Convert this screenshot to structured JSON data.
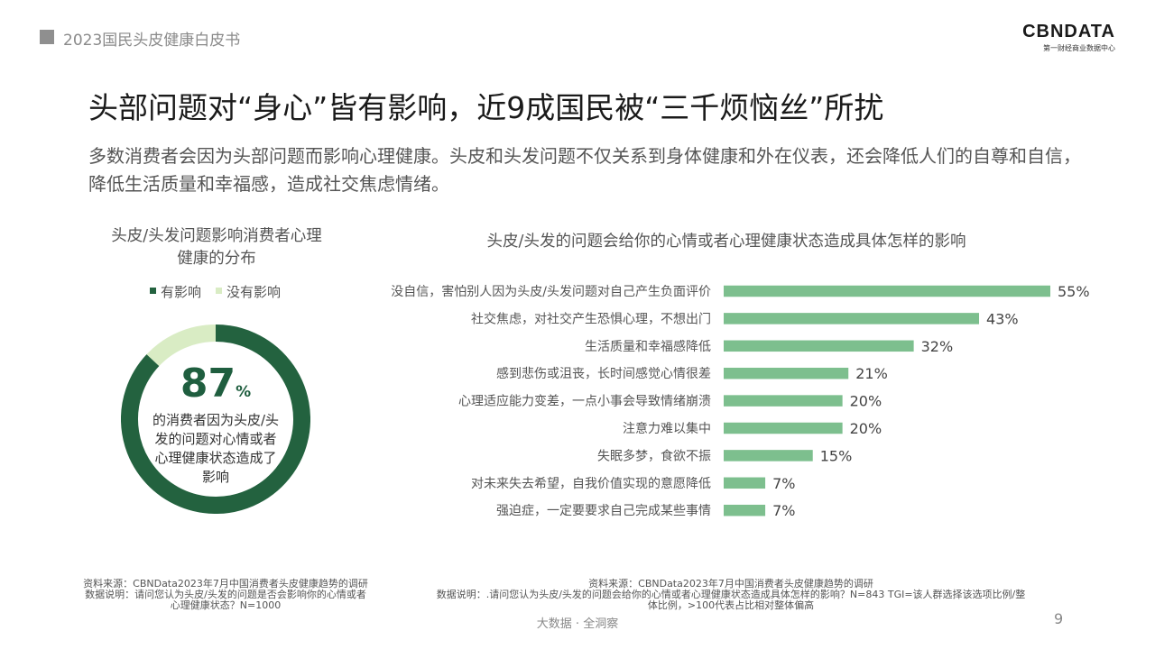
{
  "header": {
    "title": "2023国民头皮健康白皮书"
  },
  "logo": {
    "main": "CBNDATA",
    "sub": "第一财经商业数据中心"
  },
  "main": {
    "title": "头部问题对“身心”皆有影响，近9成国民被“三千烦恼丝”所扰",
    "subtitle": "多数消费者会因为头部问题而影响心理健康。头皮和头发问题不仅关系到身体健康和外在仪表，还会降低人们的自尊和自信，降低生活质量和幸福感，造成社交焦虑情绪。"
  },
  "colors": {
    "dark_green": "#23623f",
    "light_green": "#d9ecc4",
    "bar_green": "#7dbf8e"
  },
  "donut": {
    "big_number": "87",
    "big_unit": "%",
    "center_text": "的消费者因为头皮/头发的问题对心情或者心理健康状态造成了影响"
  },
  "chart_data": [
    {
      "type": "pie",
      "title": "头皮/头发问题影响消费者心理健康的分布",
      "categories": [
        "有影响",
        "没有影响"
      ],
      "values": [
        87,
        13
      ],
      "legend": "top"
    },
    {
      "type": "bar",
      "orientation": "horizontal",
      "title": "头皮/头发的问题会给你的心情或者心理健康状态造成具体怎样的影响",
      "categories": [
        "没自信，害怕别人因为头皮/头发问题对自己产生负面评价",
        "社交焦虑，对社交产生恐惧心理，不想出门",
        "生活质量和幸福感降低",
        "感到悲伤或沮丧，长时间感觉心情很差",
        "心理适应能力变差，一点小事会导致情绪崩溃",
        "注意力难以集中",
        "失眠多梦，食欲不振",
        "对未来失去希望，自我价值实现的意愿降低",
        "强迫症，一定要要求自己完成某些事情"
      ],
      "values": [
        55,
        43,
        32,
        21,
        20,
        20,
        15,
        7,
        7
      ],
      "value_labels": [
        "55%",
        "43%",
        "32%",
        "21%",
        "20%",
        "20%",
        "15%",
        "7%",
        "7%"
      ],
      "xlim": [
        0,
        55
      ]
    }
  ],
  "footer": {
    "left": [
      "资料来源：CBNData2023年7月中国消费者头皮健康趋势的调研",
      "数据说明：请问您认为头皮/头发的问题是否会影响你的心情或者",
      "心理健康状态？N=1000"
    ],
    "right": [
      "资料来源：CBNData2023年7月中国消费者头皮健康趋势的调研",
      "数据说明：.请问您认为头皮/头发的问题会给你的心情或者心理健康状态造成具体怎样的影响？N=843 TGI=该人群选择该选项比例/整",
      "体比例，>100代表占比相对整体偏高"
    ],
    "center": "大数据 · 全洞察",
    "page": "9"
  }
}
